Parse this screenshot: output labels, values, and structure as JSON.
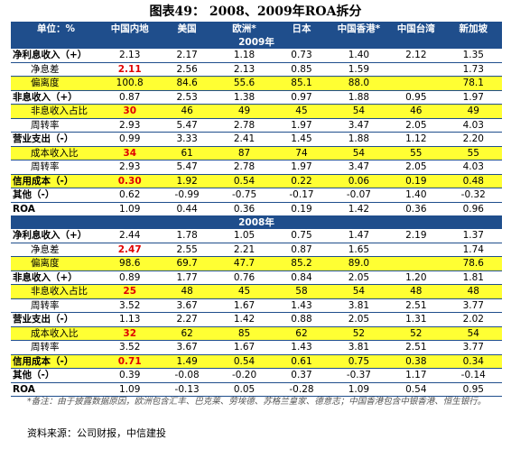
{
  "title": "图表49： 2008、2009年ROA拆分",
  "table": {
    "header": [
      "单位：%",
      "中国内地",
      "美国",
      "欧洲*",
      "日本",
      "中国香港*",
      "中国台湾",
      "新加坡"
    ],
    "sections": [
      {
        "label": "2009年",
        "rows": [
          [
            "净利息收入（+）",
            "2.13",
            "2.17",
            "1.18",
            "0.73",
            "1.40",
            "2.12",
            "1.35"
          ],
          [
            "净息差",
            "2.11",
            "2.56",
            "2.13",
            "0.85",
            "1.59",
            null,
            "1.73"
          ],
          [
            "偏离度",
            "100.8",
            "84.6",
            "55.6",
            "85.1",
            "88.0",
            null,
            "78.1"
          ],
          [
            "非息收入（+）",
            "0.87",
            "2.53",
            "1.38",
            "0.97",
            "1.88",
            "0.95",
            "1.97"
          ],
          [
            "非息收入占比",
            "30",
            "46",
            "49",
            "45",
            "54",
            "46",
            "49"
          ],
          [
            "周转率",
            "2.93",
            "5.47",
            "2.78",
            "1.97",
            "3.47",
            "2.05",
            "4.03"
          ],
          [
            "营业支出（-）",
            "0.99",
            "3.33",
            "2.41",
            "1.45",
            "1.88",
            "1.12",
            "2.20"
          ],
          [
            "成本收入比",
            "34",
            "61",
            "87",
            "74",
            "54",
            "55",
            "55"
          ],
          [
            "周转率",
            "2.93",
            "5.47",
            "2.78",
            "1.97",
            "3.47",
            "2.05",
            "4.03"
          ],
          [
            "信用成本（-）",
            "0.30",
            "1.92",
            "0.54",
            "0.22",
            "0.06",
            "0.19",
            "0.48"
          ],
          [
            "其他（-）",
            "0.62",
            "-0.99",
            "-0.75",
            "-0.17",
            "-0.07",
            "1.40",
            "-0.32"
          ],
          [
            "ROA",
            "1.09",
            "0.44",
            "0.36",
            "0.19",
            "1.42",
            "0.36",
            "0.96"
          ]
        ]
      },
      {
        "label": "2008年",
        "rows": [
          [
            "净利息收入（+）",
            "2.44",
            "1.78",
            "1.05",
            "0.75",
            "1.47",
            "2.19",
            "1.37"
          ],
          [
            "净息差",
            "2.47",
            "2.55",
            "2.21",
            "0.87",
            "1.65",
            null,
            "1.74"
          ],
          [
            "偏离度",
            "98.6",
            "69.7",
            "47.7",
            "85.2",
            "89.0",
            null,
            "78.6"
          ],
          [
            "非息收入（+）",
            "0.89",
            "1.77",
            "0.76",
            "0.84",
            "2.05",
            "1.20",
            "1.81"
          ],
          [
            "非息收入占比",
            "25",
            "48",
            "45",
            "58",
            "54",
            "48",
            "48"
          ],
          [
            "周转率",
            "3.52",
            "3.67",
            "1.67",
            "1.43",
            "3.81",
            "2.51",
            "3.77"
          ],
          [
            "营业支出（-）",
            "1.13",
            "2.27",
            "1.42",
            "0.88",
            "2.05",
            "1.31",
            "2.02"
          ],
          [
            "成本收入比",
            "32",
            "62",
            "85",
            "62",
            "52",
            "52",
            "54"
          ],
          [
            "周转率",
            "3.52",
            "3.67",
            "1.67",
            "1.43",
            "3.81",
            "2.51",
            "3.77"
          ],
          [
            "信用成本（-）",
            "0.71",
            "1.49",
            "0.54",
            "0.61",
            "0.75",
            "0.38",
            "0.34"
          ],
          [
            "其他（-）",
            "0.39",
            "-0.08",
            "-0.20",
            "0.37",
            "-0.37",
            "1.17",
            "-0.14"
          ],
          [
            "ROA",
            "1.09",
            "-0.13",
            "0.05",
            "-0.28",
            "1.09",
            "0.54",
            "0.95"
          ]
        ]
      }
    ]
  },
  "note": "*备注：由于披露数据原因，欧洲包含汇丰、巴克莱、劳埃德、苏格兰皇家、德意志；中国香港包含中银香港、恒生银行。",
  "source": "资料来源：公司财报，中信建投"
}
